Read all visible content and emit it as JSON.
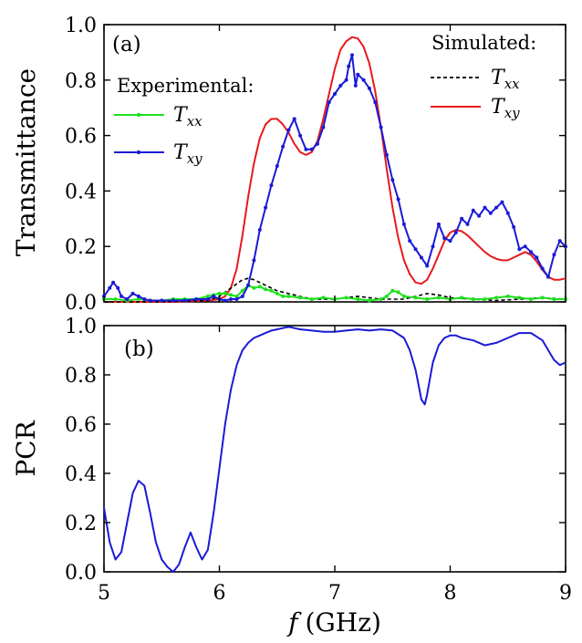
{
  "chart_data": [
    {
      "panel": "(a)",
      "type": "line",
      "ylabel": "Transmittance",
      "xlim": [
        5,
        9
      ],
      "ylim": [
        0,
        1.0
      ],
      "x_ticks": [
        "5",
        "6",
        "7",
        "8",
        "9"
      ],
      "y_ticks": [
        "0.0",
        "0.2",
        "0.4",
        "0.6",
        "0.8",
        "1.0"
      ],
      "legend_groups": [
        {
          "title": "Experimental:",
          "entries": [
            {
              "series": "exp_txx",
              "sym": "T",
              "sub": "xx"
            },
            {
              "series": "exp_txy",
              "sym": "T",
              "sub": "xy"
            }
          ]
        },
        {
          "title": "Simulated:",
          "entries": [
            {
              "series": "sim_txx",
              "sym": "T",
              "sub": "xx"
            },
            {
              "series": "sim_txy",
              "sym": "T",
              "sub": "xy"
            }
          ]
        }
      ],
      "series": [
        {
          "id": "sim_txy",
          "group": "Simulated",
          "name": "Txy",
          "color": "#e8191c",
          "style": "solid",
          "x": [
            5.0,
            5.3,
            5.6,
            5.9,
            6.0,
            6.05,
            6.1,
            6.15,
            6.2,
            6.25,
            6.3,
            6.35,
            6.4,
            6.45,
            6.5,
            6.55,
            6.6,
            6.65,
            6.7,
            6.75,
            6.8,
            6.85,
            6.9,
            6.95,
            7.0,
            7.05,
            7.1,
            7.15,
            7.2,
            7.25,
            7.3,
            7.35,
            7.4,
            7.45,
            7.5,
            7.55,
            7.6,
            7.65,
            7.7,
            7.75,
            7.8,
            7.85,
            7.9,
            7.95,
            8.0,
            8.05,
            8.1,
            8.15,
            8.2,
            8.25,
            8.3,
            8.35,
            8.4,
            8.45,
            8.5,
            8.55,
            8.6,
            8.65,
            8.7,
            8.75,
            8.8,
            8.85,
            8.9,
            8.95,
            9.0
          ],
          "y": [
            0.0,
            0.0,
            0.0,
            0.005,
            0.01,
            0.02,
            0.05,
            0.12,
            0.24,
            0.38,
            0.5,
            0.59,
            0.64,
            0.66,
            0.66,
            0.64,
            0.61,
            0.57,
            0.54,
            0.53,
            0.54,
            0.58,
            0.66,
            0.75,
            0.84,
            0.91,
            0.94,
            0.955,
            0.95,
            0.92,
            0.86,
            0.76,
            0.63,
            0.48,
            0.34,
            0.23,
            0.15,
            0.1,
            0.07,
            0.065,
            0.08,
            0.12,
            0.17,
            0.22,
            0.25,
            0.26,
            0.255,
            0.24,
            0.22,
            0.2,
            0.18,
            0.165,
            0.155,
            0.15,
            0.15,
            0.16,
            0.17,
            0.18,
            0.17,
            0.145,
            0.115,
            0.09,
            0.08,
            0.08,
            0.085
          ]
        },
        {
          "id": "sim_txx",
          "group": "Simulated",
          "name": "Txx",
          "color": "#000000",
          "style": "dashed",
          "x": [
            5.0,
            5.5,
            5.9,
            6.0,
            6.1,
            6.2,
            6.25,
            6.3,
            6.4,
            6.5,
            6.6,
            6.7,
            6.8,
            7.0,
            7.2,
            7.4,
            7.6,
            7.7,
            7.8,
            7.9,
            8.0,
            8.2,
            8.4,
            8.6,
            8.8,
            9.0
          ],
          "y": [
            0.0,
            0.0,
            0.005,
            0.02,
            0.05,
            0.08,
            0.085,
            0.08,
            0.06,
            0.04,
            0.03,
            0.02,
            0.01,
            0.01,
            0.02,
            0.01,
            0.01,
            0.02,
            0.03,
            0.025,
            0.015,
            0.01,
            0.005,
            0.01,
            0.015,
            0.01
          ]
        },
        {
          "id": "exp_txx",
          "group": "Experimental",
          "name": "Txx",
          "color": "#1ee01e",
          "style": "solid-dots",
          "x": [
            5.0,
            5.1,
            5.2,
            5.3,
            5.4,
            5.5,
            5.6,
            5.7,
            5.8,
            5.9,
            5.95,
            6.0,
            6.05,
            6.1,
            6.15,
            6.2,
            6.25,
            6.3,
            6.35,
            6.4,
            6.45,
            6.5,
            6.55,
            6.6,
            6.7,
            6.8,
            6.9,
            7.0,
            7.1,
            7.2,
            7.3,
            7.4,
            7.45,
            7.5,
            7.55,
            7.6,
            7.7,
            7.8,
            7.9,
            8.0,
            8.1,
            8.2,
            8.3,
            8.4,
            8.5,
            8.6,
            8.7,
            8.8,
            8.9,
            9.0
          ],
          "y": [
            0.01,
            0.01,
            0.005,
            0.01,
            0.005,
            0.005,
            0.01,
            0.01,
            0.01,
            0.02,
            0.025,
            0.03,
            0.03,
            0.025,
            0.02,
            0.04,
            0.06,
            0.05,
            0.055,
            0.045,
            0.04,
            0.03,
            0.02,
            0.02,
            0.015,
            0.01,
            0.015,
            0.01,
            0.015,
            0.01,
            0.005,
            0.01,
            0.02,
            0.04,
            0.035,
            0.02,
            0.015,
            0.01,
            0.015,
            0.01,
            0.015,
            0.01,
            0.01,
            0.015,
            0.02,
            0.015,
            0.01,
            0.015,
            0.01,
            0.01
          ]
        },
        {
          "id": "exp_txy",
          "group": "Experimental",
          "name": "Txy",
          "color": "#1a1ad6",
          "style": "solid-dots",
          "x": [
            5.0,
            5.05,
            5.08,
            5.12,
            5.15,
            5.2,
            5.25,
            5.3,
            5.35,
            5.4,
            5.5,
            5.6,
            5.7,
            5.8,
            5.9,
            5.95,
            6.0,
            6.05,
            6.1,
            6.15,
            6.2,
            6.25,
            6.3,
            6.35,
            6.4,
            6.45,
            6.5,
            6.55,
            6.6,
            6.65,
            6.7,
            6.75,
            6.8,
            6.85,
            6.9,
            6.95,
            7.0,
            7.05,
            7.1,
            7.12,
            7.15,
            7.18,
            7.2,
            7.25,
            7.3,
            7.35,
            7.4,
            7.45,
            7.5,
            7.55,
            7.6,
            7.65,
            7.7,
            7.75,
            7.8,
            7.85,
            7.9,
            7.95,
            8.0,
            8.05,
            8.1,
            8.15,
            8.2,
            8.25,
            8.3,
            8.35,
            8.4,
            8.45,
            8.5,
            8.55,
            8.6,
            8.65,
            8.7,
            8.75,
            8.8,
            8.85,
            8.9,
            8.95,
            9.0
          ],
          "y": [
            0.02,
            0.05,
            0.07,
            0.05,
            0.02,
            0.01,
            0.03,
            0.02,
            0.01,
            0.005,
            0.005,
            0.005,
            0.005,
            0.01,
            0.01,
            0.02,
            0.01,
            0.005,
            0.01,
            0.01,
            0.02,
            0.06,
            0.15,
            0.26,
            0.34,
            0.42,
            0.49,
            0.56,
            0.62,
            0.66,
            0.6,
            0.55,
            0.55,
            0.57,
            0.63,
            0.72,
            0.75,
            0.78,
            0.8,
            0.85,
            0.89,
            0.78,
            0.82,
            0.8,
            0.77,
            0.72,
            0.63,
            0.53,
            0.44,
            0.37,
            0.28,
            0.22,
            0.19,
            0.16,
            0.13,
            0.2,
            0.28,
            0.23,
            0.22,
            0.25,
            0.3,
            0.28,
            0.33,
            0.31,
            0.34,
            0.32,
            0.34,
            0.36,
            0.32,
            0.27,
            0.19,
            0.2,
            0.18,
            0.16,
            0.12,
            0.09,
            0.17,
            0.22,
            0.2
          ]
        }
      ]
    },
    {
      "panel": "(b)",
      "type": "line",
      "ylabel": "PCR",
      "xlabel_symbol": "f",
      "xlabel_unit": "(GHz)",
      "xlim": [
        5,
        9
      ],
      "ylim": [
        0,
        1.0
      ],
      "x_ticks": [
        "5",
        "6",
        "7",
        "8",
        "9"
      ],
      "y_ticks": [
        "0.0",
        "0.2",
        "0.4",
        "0.6",
        "0.8",
        "1.0"
      ],
      "series": [
        {
          "id": "pcr",
          "color": "#1a1ad6",
          "style": "solid",
          "x": [
            5.0,
            5.05,
            5.1,
            5.15,
            5.2,
            5.25,
            5.3,
            5.35,
            5.4,
            5.45,
            5.5,
            5.55,
            5.6,
            5.65,
            5.7,
            5.75,
            5.8,
            5.85,
            5.9,
            5.95,
            6.0,
            6.05,
            6.1,
            6.15,
            6.2,
            6.25,
            6.3,
            6.35,
            6.4,
            6.45,
            6.5,
            6.55,
            6.6,
            6.65,
            6.7,
            6.8,
            6.9,
            7.0,
            7.1,
            7.2,
            7.3,
            7.4,
            7.5,
            7.6,
            7.65,
            7.7,
            7.75,
            7.78,
            7.8,
            7.85,
            7.9,
            7.95,
            8.0,
            8.05,
            8.1,
            8.2,
            8.3,
            8.4,
            8.5,
            8.6,
            8.7,
            8.8,
            8.85,
            8.9,
            8.95,
            9.0
          ],
          "y": [
            0.26,
            0.12,
            0.05,
            0.08,
            0.2,
            0.32,
            0.37,
            0.35,
            0.24,
            0.12,
            0.05,
            0.02,
            0.0,
            0.03,
            0.1,
            0.16,
            0.1,
            0.05,
            0.09,
            0.24,
            0.42,
            0.6,
            0.74,
            0.84,
            0.9,
            0.93,
            0.95,
            0.96,
            0.97,
            0.98,
            0.985,
            0.99,
            0.995,
            0.99,
            0.985,
            0.98,
            0.975,
            0.975,
            0.98,
            0.985,
            0.98,
            0.985,
            0.98,
            0.95,
            0.9,
            0.82,
            0.7,
            0.68,
            0.72,
            0.85,
            0.92,
            0.95,
            0.96,
            0.96,
            0.95,
            0.94,
            0.92,
            0.93,
            0.95,
            0.97,
            0.97,
            0.94,
            0.9,
            0.86,
            0.84,
            0.85
          ]
        }
      ]
    }
  ]
}
